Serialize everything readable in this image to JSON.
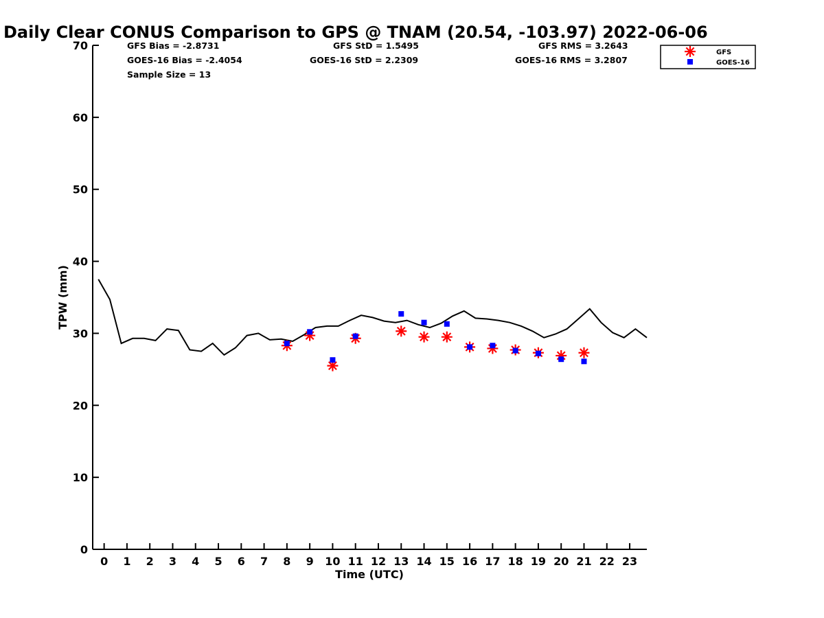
{
  "chart_data": {
    "type": "line",
    "title": "Daily Clear CONUS Comparison to GPS @ TNAM (20.54, -103.97) 2022-06-06",
    "xlabel": "Time (UTC)",
    "ylabel": "TPW (mm)",
    "xlim": [
      -0.5,
      23.75
    ],
    "ylim": [
      0,
      70
    ],
    "x_ticks": [
      0,
      1,
      2,
      3,
      4,
      5,
      6,
      7,
      8,
      9,
      10,
      11,
      12,
      13,
      14,
      15,
      16,
      17,
      18,
      19,
      20,
      21,
      22,
      23
    ],
    "y_ticks": [
      0,
      10,
      20,
      30,
      40,
      50,
      60,
      70
    ],
    "grid": false,
    "legend_position": "top-right",
    "stats": {
      "gfs_bias": "GFS Bias = -2.8731",
      "gfs_std": "GFS StD = 1.5495",
      "gfs_rms": "GFS RMS = 3.2643",
      "goes_bias": "GOES-16 Bias = -2.4054",
      "goes_std": "GOES-16 StD = 2.2309",
      "goes_rms": "GOES-16 RMS = 3.2807",
      "sample_size": "Sample Size = 13"
    },
    "series": [
      {
        "kind": "line",
        "color": "#000000",
        "x": [
          -0.25,
          0.25,
          0.75,
          1.25,
          1.75,
          2.25,
          2.75,
          3.25,
          3.75,
          4.25,
          4.75,
          5.25,
          5.75,
          6.25,
          6.75,
          7.25,
          7.75,
          8.25,
          8.75,
          9.25,
          9.75,
          10.25,
          10.75,
          11.25,
          11.75,
          12.25,
          12.75,
          13.25,
          13.75,
          14.25,
          14.75,
          15.25,
          15.75,
          16.25,
          16.75,
          17.25,
          17.75,
          18.25,
          18.75,
          19.25,
          19.75,
          20.25,
          20.75,
          21.25,
          21.75,
          22.25,
          22.75,
          23.25,
          23.75
        ],
        "y": [
          37.5,
          34.7,
          28.6,
          29.3,
          29.3,
          29.0,
          30.6,
          30.4,
          27.7,
          27.5,
          28.6,
          27.0,
          28.0,
          29.7,
          30.0,
          29.1,
          29.2,
          28.9,
          29.8,
          30.8,
          31.0,
          31.0,
          31.8,
          32.5,
          32.2,
          31.7,
          31.5,
          31.8,
          31.2,
          30.8,
          31.4,
          32.4,
          33.1,
          32.1,
          32.0,
          31.8,
          31.5,
          31.0,
          30.3,
          29.4,
          29.9,
          30.6,
          32.0,
          33.4,
          31.5,
          30.1,
          29.4,
          30.6,
          29.4
        ]
      },
      {
        "kind": "scatter",
        "name": "GFS",
        "color": "#ff0000",
        "marker": "asterisk",
        "x": [
          8,
          9,
          10,
          11,
          13,
          14,
          15,
          16,
          17,
          18,
          19,
          20,
          21
        ],
        "y": [
          28.3,
          29.7,
          25.5,
          29.3,
          30.3,
          29.5,
          29.5,
          28.1,
          27.9,
          27.7,
          27.3,
          26.9,
          27.3
        ]
      },
      {
        "kind": "scatter",
        "name": "GOES-16",
        "color": "#0000ff",
        "marker": "square",
        "x": [
          8,
          9,
          10,
          11,
          13,
          14,
          15,
          16,
          17,
          18,
          19,
          20,
          21
        ],
        "y": [
          28.6,
          30.2,
          26.3,
          29.6,
          32.7,
          31.5,
          31.3,
          28.1,
          28.3,
          27.6,
          27.2,
          26.4,
          26.1
        ]
      }
    ]
  }
}
